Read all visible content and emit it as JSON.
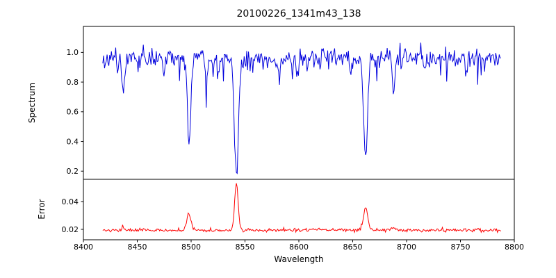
{
  "figure": {
    "background": "#ffffff",
    "axes_color": "#000000"
  },
  "chart_data": {
    "type": "line",
    "title": "20100226_1341m43_138",
    "xlabel": "Wavelength",
    "xlim": [
      8400,
      8800
    ],
    "x_ticks": [
      8400,
      8450,
      8500,
      8550,
      8600,
      8650,
      8700,
      8750,
      8800
    ],
    "x_tick_labels": [
      "8400",
      "8450",
      "8500",
      "8550",
      "8600",
      "8650",
      "8700",
      "8750",
      "8800"
    ],
    "x_data_range": [
      8418,
      8788
    ],
    "sample_step": 0.8,
    "noise_seed": 11,
    "grid": false,
    "legend": "none",
    "panels": [
      {
        "name": "spectrum",
        "ylabel": "Spectrum",
        "ylim": [
          0.145,
          1.175
        ],
        "y_ticks": [
          0.2,
          0.4,
          0.6,
          0.8,
          1.0
        ],
        "y_tick_labels": [
          "0.2",
          "0.4",
          "0.6",
          "0.8",
          "1.0"
        ],
        "line_color": "#0000dd",
        "continuum_level": 0.96,
        "noise_sigma": 0.03,
        "absorption_lines": [
          {
            "center": 8498,
            "depth": 0.58,
            "sigma": 1.6
          },
          {
            "center": 8542,
            "depth": 0.79,
            "sigma": 2.0
          },
          {
            "center": 8662,
            "depth": 0.66,
            "sigma": 1.8
          }
        ],
        "minor_lines": [
          {
            "center": 8437,
            "depth": 0.26,
            "sigma": 1.2
          },
          {
            "center": 8475,
            "depth": 0.12,
            "sigma": 1.0
          },
          {
            "center": 8514,
            "depth": 0.16,
            "sigma": 1.1
          },
          {
            "center": 8525,
            "depth": 0.1,
            "sigma": 0.9
          },
          {
            "center": 8582,
            "depth": 0.11,
            "sigma": 1.0
          },
          {
            "center": 8598,
            "depth": 0.1,
            "sigma": 0.9
          },
          {
            "center": 8648,
            "depth": 0.09,
            "sigma": 0.9
          },
          {
            "center": 8688,
            "depth": 0.24,
            "sigma": 1.2
          },
          {
            "center": 8717,
            "depth": 0.08,
            "sigma": 0.9
          }
        ]
      },
      {
        "name": "error",
        "ylabel": "Error",
        "ylim": [
          0.0125,
          0.056
        ],
        "y_ticks": [
          0.02,
          0.04
        ],
        "y_tick_labels": [
          "0.02",
          "0.04"
        ],
        "line_color": "#ff0000",
        "baseline": 0.019,
        "noise_sigma": 0.0005,
        "peaks": [
          {
            "center": 8498,
            "height": 0.0125,
            "sigma": 1.8
          },
          {
            "center": 8542,
            "height": 0.034,
            "sigma": 1.6
          },
          {
            "center": 8662,
            "height": 0.016,
            "sigma": 2.0
          }
        ],
        "minor_peaks": [
          {
            "center": 8437,
            "height": 0.0018,
            "sigma": 1.5
          },
          {
            "center": 8688,
            "height": 0.0018,
            "sigma": 1.5
          }
        ]
      }
    ]
  }
}
